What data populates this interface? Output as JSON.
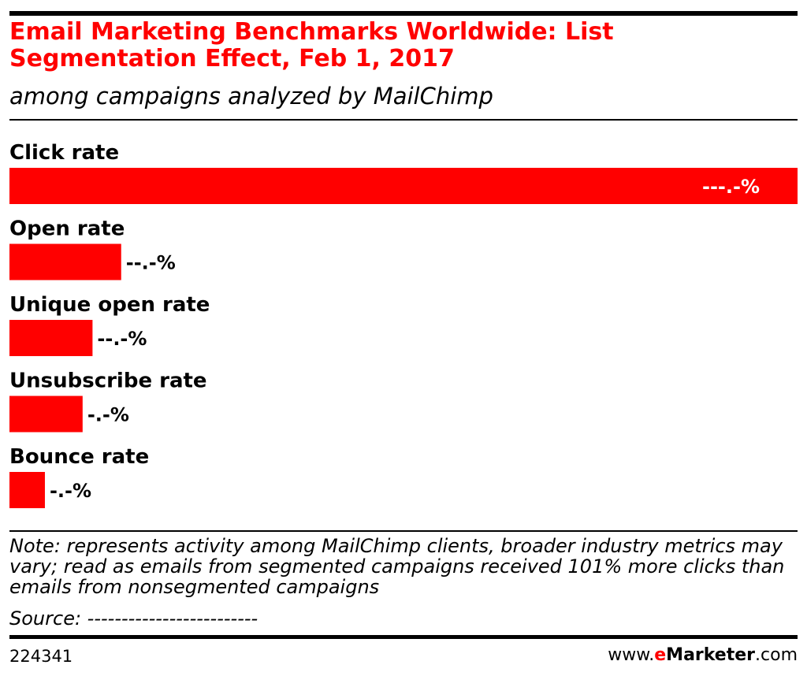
{
  "header": {
    "title": "Email Marketing Benchmarks Worldwide: List Segmentation Effect, Feb 1, 2017",
    "subtitle": "among campaigns analyzed by MailChimp"
  },
  "chart_data": {
    "type": "bar",
    "orientation": "horizontal",
    "categories": [
      "Click rate",
      "Open rate",
      "Unique open rate",
      "Unsubscribe rate",
      "Bounce rate"
    ],
    "values": [
      100.95,
      14.31,
      10.64,
      9.37,
      4.54
    ],
    "value_labels": [
      "---.-%",
      "--.-%",
      "--.-%",
      "-.-%",
      "-.-%"
    ],
    "bar_color": "#ff0000",
    "xlim": [
      0,
      100.95
    ],
    "grid": false,
    "legend": "none"
  },
  "footer": {
    "note": "Note: represents activity among MailChimp clients, broader industry metrics may vary; read as emails from segmented campaigns received 101% more clicks than emails from nonsegmented campaigns",
    "source": "Source: -------------------------",
    "chart_id": "224341",
    "brand_prefix": "www.",
    "brand_e": "e",
    "brand_name": "Marketer",
    "brand_suffix": ".com"
  }
}
